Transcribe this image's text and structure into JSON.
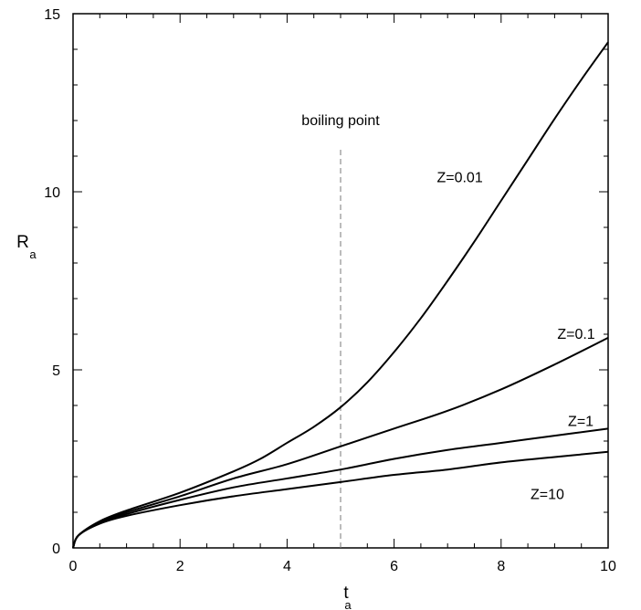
{
  "chart_data": {
    "type": "line",
    "xlabel": {
      "main": "t",
      "sub": "a"
    },
    "ylabel": {
      "main": "R",
      "sub": "a"
    },
    "xlim": [
      0,
      10
    ],
    "ylim": [
      0,
      15
    ],
    "x_ticks": [
      0,
      2,
      4,
      6,
      8,
      10
    ],
    "y_ticks": [
      0,
      5,
      10,
      15
    ],
    "x_minor_step": 0.5,
    "y_minor_step": 1,
    "grid": false,
    "line_color": "#000000",
    "annotation": {
      "text": "boiling point",
      "x": 5,
      "line_from_y": 0,
      "line_to_y": 11.2
    },
    "series": [
      {
        "name": "Z=0.01",
        "label_at": {
          "x": 6.8,
          "y": 10.4
        },
        "points": [
          [
            0,
            0
          ],
          [
            0.1,
            0.35
          ],
          [
            0.5,
            0.75
          ],
          [
            1,
            1.05
          ],
          [
            2,
            1.55
          ],
          [
            3,
            2.15
          ],
          [
            3.5,
            2.5
          ],
          [
            4,
            2.95
          ],
          [
            4.5,
            3.4
          ],
          [
            5,
            3.95
          ],
          [
            5.5,
            4.65
          ],
          [
            6,
            5.5
          ],
          [
            6.5,
            6.45
          ],
          [
            7,
            7.5
          ],
          [
            7.5,
            8.6
          ],
          [
            8,
            9.75
          ],
          [
            8.5,
            10.9
          ],
          [
            9,
            12.05
          ],
          [
            9.5,
            13.15
          ],
          [
            10,
            14.2
          ]
        ]
      },
      {
        "name": "Z=0.1",
        "label_at": {
          "x": 9.05,
          "y": 6.0
        },
        "points": [
          [
            0,
            0
          ],
          [
            0.1,
            0.35
          ],
          [
            0.5,
            0.72
          ],
          [
            1,
            1.0
          ],
          [
            2,
            1.45
          ],
          [
            3,
            1.95
          ],
          [
            4,
            2.35
          ],
          [
            5,
            2.85
          ],
          [
            6,
            3.35
          ],
          [
            7,
            3.85
          ],
          [
            8,
            4.45
          ],
          [
            9,
            5.15
          ],
          [
            10,
            5.9
          ]
        ]
      },
      {
        "name": "Z=1",
        "label_at": {
          "x": 9.25,
          "y": 3.55
        },
        "points": [
          [
            0,
            0
          ],
          [
            0.1,
            0.35
          ],
          [
            0.5,
            0.7
          ],
          [
            1,
            0.95
          ],
          [
            2,
            1.35
          ],
          [
            3,
            1.7
          ],
          [
            4,
            1.95
          ],
          [
            5,
            2.2
          ],
          [
            6,
            2.5
          ],
          [
            7,
            2.75
          ],
          [
            8,
            2.95
          ],
          [
            9,
            3.15
          ],
          [
            10,
            3.35
          ]
        ]
      },
      {
        "name": "Z=10",
        "label_at": {
          "x": 8.55,
          "y": 1.5
        },
        "points": [
          [
            0,
            0
          ],
          [
            0.1,
            0.35
          ],
          [
            0.5,
            0.68
          ],
          [
            1,
            0.9
          ],
          [
            2,
            1.2
          ],
          [
            3,
            1.45
          ],
          [
            4,
            1.65
          ],
          [
            5,
            1.85
          ],
          [
            6,
            2.05
          ],
          [
            7,
            2.2
          ],
          [
            8,
            2.4
          ],
          [
            9,
            2.55
          ],
          [
            10,
            2.7
          ]
        ]
      }
    ]
  }
}
